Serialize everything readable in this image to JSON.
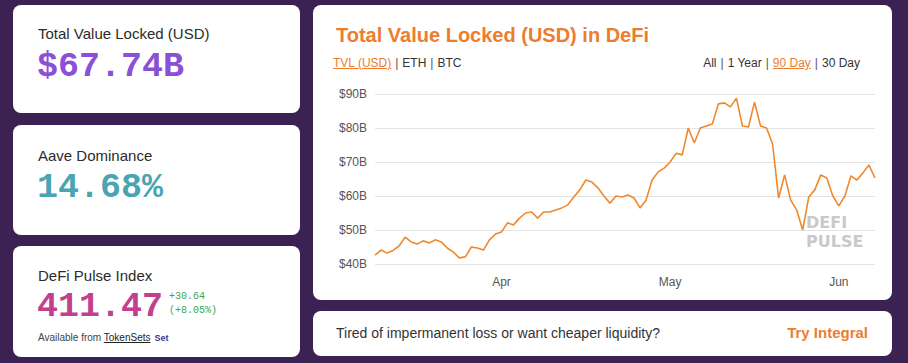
{
  "cards": [
    {
      "label": "Total Value Locked (USD)",
      "value": "$67.74B"
    },
    {
      "label": "Aave Dominance",
      "value": "14.68%"
    },
    {
      "label": "DeFi Pulse Index",
      "value": "411.47",
      "change": [
        "+30.64",
        "(+8.05%)"
      ],
      "source": {
        "text": "Available from",
        "link": "TokenSets",
        "logo": "Set"
      }
    }
  ],
  "controls": {
    "separator": "|",
    "units": [
      "TVL (USD)",
      "ETH",
      "BTC"
    ],
    "active_unit": "TVL (USD)",
    "ranges": [
      "All",
      "1 Year",
      "90 Day",
      "30 Day"
    ],
    "active_range": "90 Day"
  },
  "watermark": [
    "DEFI",
    "PULSE"
  ],
  "banner": {
    "text": "Tired of impermanent loss or want cheaper liquidity?",
    "link": "Try Integral"
  },
  "chart_data": {
    "type": "line",
    "title": "Total Value Locked (USD) in DeFi",
    "color": "#f0882e",
    "categories": [
      null,
      null,
      null,
      null,
      null,
      null,
      null,
      null,
      null,
      null,
      null,
      null,
      null,
      null,
      null,
      null,
      null,
      null,
      null,
      null,
      null,
      "Apr",
      null,
      null,
      null,
      null,
      null,
      null,
      null,
      null,
      null,
      null,
      null,
      null,
      null,
      null,
      null,
      null,
      null,
      null,
      null,
      null,
      null,
      null,
      null,
      null,
      null,
      null,
      null,
      "May",
      null,
      null,
      null,
      null,
      null,
      null,
      null,
      null,
      null,
      null,
      null,
      null,
      null,
      null,
      null,
      null,
      null,
      null,
      null,
      null,
      null,
      null,
      null,
      null,
      null,
      null,
      null,
      "Jun",
      null,
      null,
      null,
      null,
      null,
      null
    ],
    "values": [
      42.6,
      44.1,
      43.2,
      44.0,
      45.3,
      47.9,
      46.5,
      45.9,
      46.8,
      46.2,
      47.1,
      46.5,
      44.7,
      43.5,
      41.8,
      42.1,
      45.0,
      44.7,
      44.1,
      47.1,
      48.8,
      49.4,
      52.1,
      51.5,
      53.5,
      55.0,
      55.3,
      53.5,
      55.3,
      55.3,
      55.9,
      56.5,
      57.4,
      59.7,
      61.8,
      64.7,
      64.1,
      62.4,
      60.0,
      57.9,
      60.0,
      59.7,
      60.3,
      59.4,
      56.5,
      58.8,
      64.7,
      67.1,
      68.2,
      70.0,
      72.6,
      72.1,
      80.0,
      75.6,
      80.0,
      80.6,
      81.2,
      87.1,
      87.4,
      86.2,
      88.8,
      80.6,
      80.3,
      87.6,
      80.6,
      80.0,
      75.3,
      59.4,
      66.2,
      58.8,
      55.9,
      50.0,
      59.7,
      61.8,
      66.2,
      65.3,
      60.0,
      57.1,
      60.0,
      65.9,
      64.7,
      66.8,
      69.1,
      65.3
    ],
    "ylim": [
      40,
      90
    ],
    "yticks": [
      {
        "value": 40,
        "label": "$40B"
      },
      {
        "value": 50,
        "label": "$50B"
      },
      {
        "value": 60,
        "label": "$60B"
      },
      {
        "value": 70,
        "label": "$70B"
      },
      {
        "value": 80,
        "label": "$80B"
      },
      {
        "value": 90,
        "label": "$90B"
      }
    ],
    "grid": true
  }
}
